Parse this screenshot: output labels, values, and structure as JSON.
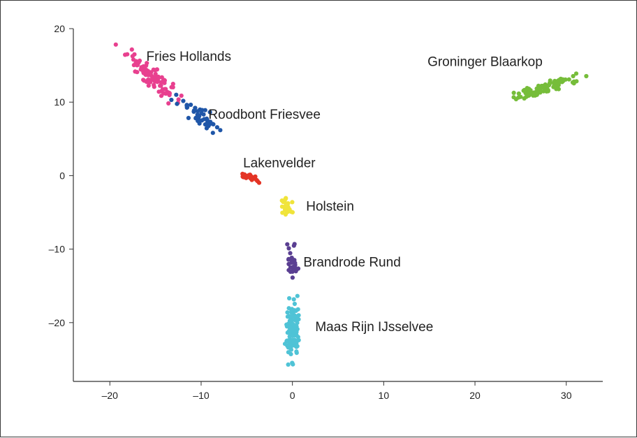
{
  "chart_data": {
    "type": "scatter",
    "xlim": [
      -24,
      34
    ],
    "ylim": [
      -28,
      20
    ],
    "x_ticks": [
      -20,
      -10,
      0,
      10,
      20,
      30
    ],
    "y_ticks": [
      -20,
      -10,
      0,
      10,
      20
    ],
    "x_tick_labels": [
      "–20",
      "–10",
      "0",
      "10",
      "20",
      "30"
    ],
    "y_tick_labels": [
      "–20",
      "–10",
      "0",
      "10",
      "20"
    ],
    "grid": false,
    "legend": "none",
    "series": [
      {
        "name": "Fries Hollands",
        "color": "#e8408f",
        "x_center": -15.5,
        "y_center": 13.5,
        "x_spread": 3.5,
        "y_spread": 3.0,
        "slope": -0.95,
        "count": 90,
        "label_x": -16,
        "label_y": 16.2
      },
      {
        "name": "Roodbont Friesvee",
        "color": "#1f56a8",
        "x_center": -10,
        "y_center": 8,
        "x_spread": 3.0,
        "y_spread": 2.5,
        "slope": -0.9,
        "count": 45,
        "label_x": -9.2,
        "label_y": 8.3
      },
      {
        "name": "Lakenvelder",
        "color": "#e43425",
        "x_center": -4.5,
        "y_center": -0.3,
        "x_spread": 1.3,
        "y_spread": 0.8,
        "slope": -0.3,
        "count": 25,
        "label_x": -5.4,
        "label_y": 1.7
      },
      {
        "name": "Holstein",
        "color": "#f0e43a",
        "x_center": -0.7,
        "y_center": -4.2,
        "x_spread": 0.8,
        "y_spread": 1.3,
        "slope": 0,
        "count": 30,
        "label_x": 1.5,
        "label_y": -4.2
      },
      {
        "name": "Brandrode Rund",
        "color": "#5a3f92",
        "x_center": 0,
        "y_center": -12,
        "x_spread": 0.8,
        "y_spread": 3.0,
        "slope": 0,
        "count": 30,
        "label_x": 1.2,
        "label_y": -11.8
      },
      {
        "name": "Maas Rijn IJsselvee",
        "color": "#4fc3d6",
        "x_center": 0,
        "y_center": -21,
        "x_spread": 1.0,
        "y_spread": 4.5,
        "slope": 0,
        "count": 120,
        "label_x": 2.5,
        "label_y": -20.6
      },
      {
        "name": "Groninger Blaarkop",
        "color": "#76bd3a",
        "x_center": 28,
        "y_center": 12,
        "x_spread": 4.5,
        "y_spread": 1.8,
        "slope": 0.38,
        "count": 90,
        "label_x": 14.8,
        "label_y": 15.5
      }
    ]
  }
}
